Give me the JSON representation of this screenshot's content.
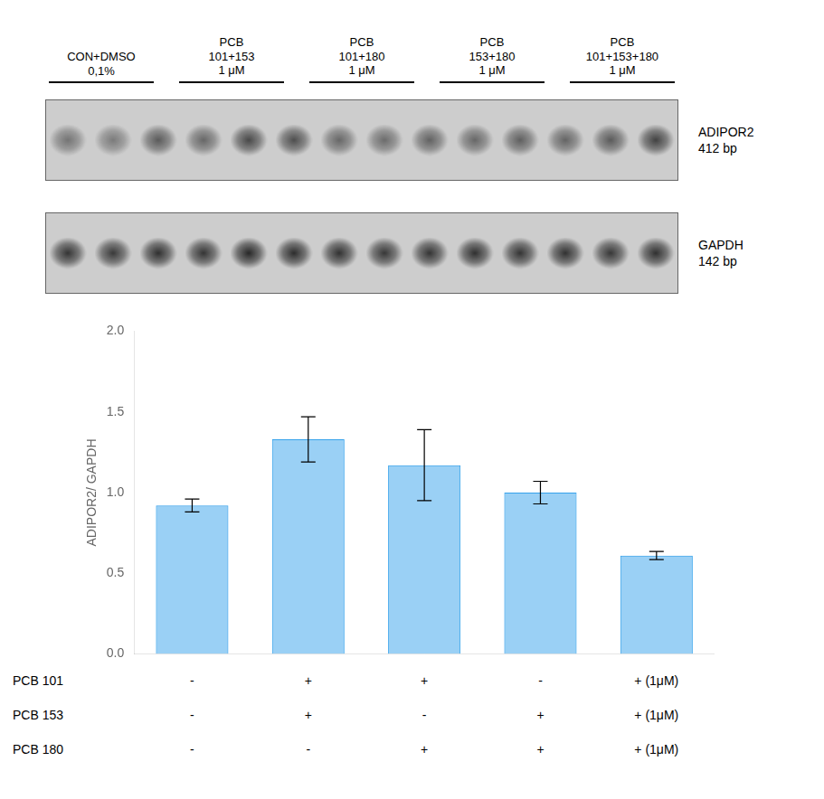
{
  "chart_data": [
    {
      "type": "heatmap",
      "title": "ADIPOR2\n412 bp",
      "annotations": [
        "CON+DMSO\n0,1%",
        "PCB\n101+153\n1 μM",
        "PCB\n101+180\n1 μM",
        "PCB\n153+180\n1 μM",
        "PCB\n101+153+180\n1 μM"
      ],
      "cells": [
        [
          0.55,
          0.52,
          0.65,
          0.6,
          0.72,
          0.7,
          0.6,
          0.58,
          0.62,
          0.6,
          0.63,
          0.61,
          0.65,
          0.75
        ]
      ]
    },
    {
      "type": "heatmap",
      "title": "GAPDH\n142 bp",
      "cells": [
        [
          0.8,
          0.78,
          0.82,
          0.8,
          0.85,
          0.83,
          0.81,
          0.79,
          0.8,
          0.82,
          0.8,
          0.81,
          0.79,
          0.82
        ]
      ]
    },
    {
      "type": "bar",
      "ylabel": "ADIPOR2/ GAPDH",
      "categories": [
        null,
        null,
        null,
        null,
        null
      ],
      "values": [
        0.92,
        1.33,
        1.17,
        1.0,
        0.61
      ],
      "errors": [
        0.04,
        0.14,
        0.22,
        0.07,
        0.025
      ],
      "ylim": [
        0.0,
        2.0
      ],
      "yticks": [
        {
          "value": 0.0,
          "label": "0.0"
        },
        {
          "value": 0.5,
          "label": "0.5"
        },
        {
          "value": 1.0,
          "label": "1.0"
        },
        {
          "value": 1.5,
          "label": "1.5"
        },
        {
          "value": 2.0,
          "label": "2.0"
        }
      ],
      "grid": false,
      "table": {
        "row_labels": [
          "PCB 101",
          "PCB 153",
          "PCB 180"
        ],
        "rows": [
          [
            "-",
            "+",
            "+",
            "-",
            "+ (1μM)"
          ],
          [
            "-",
            "+",
            "-",
            "+",
            "+ (1μM)"
          ],
          [
            "-",
            "-",
            "+",
            "+",
            "+ (1μM)"
          ]
        ]
      }
    }
  ]
}
